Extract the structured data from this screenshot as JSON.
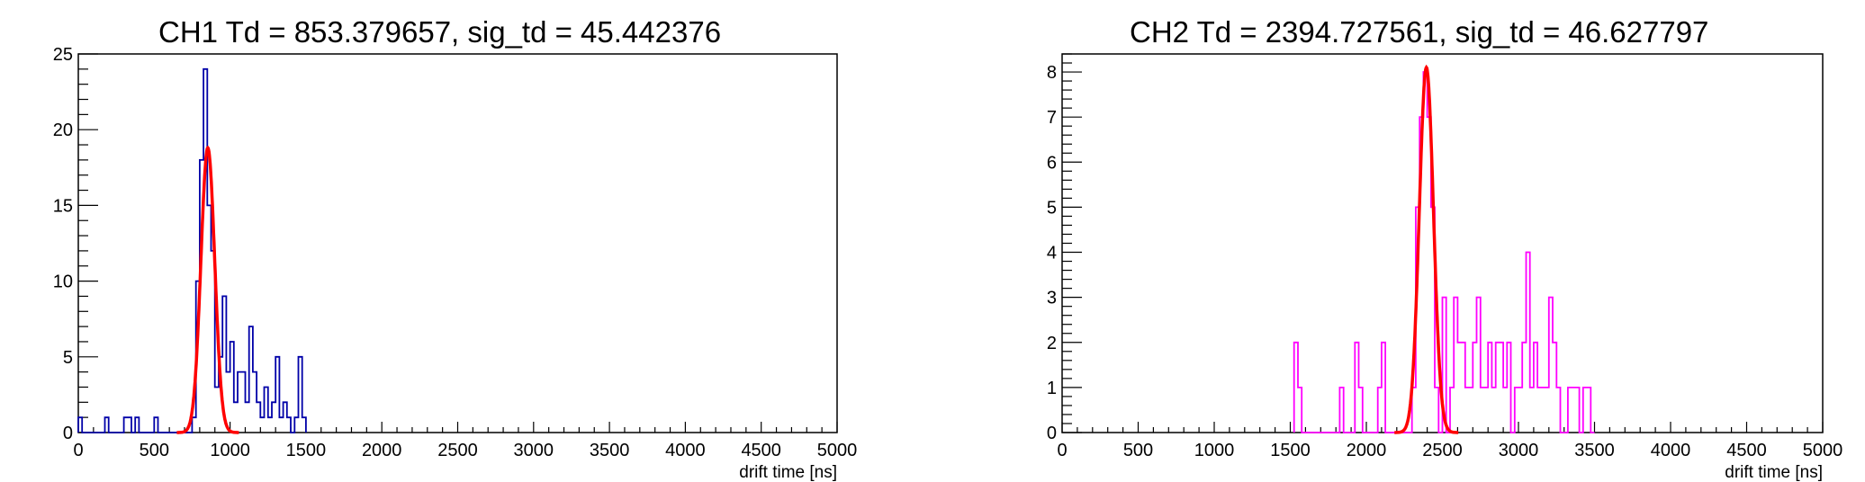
{
  "chart_data": [
    {
      "type": "histogram",
      "title": "CH1 Td = 853.379657, sig_td = 45.442376",
      "xlabel": "drift time [ns]",
      "ylabel": "",
      "xlim": [
        0,
        5000
      ],
      "ylim": [
        0,
        25
      ],
      "x_ticks": [
        0,
        500,
        1000,
        1500,
        2000,
        2500,
        3000,
        3500,
        4000,
        4500,
        5000
      ],
      "y_ticks": [
        0,
        5,
        10,
        15,
        20,
        25
      ],
      "grid": false,
      "bin_width": 25,
      "series": [
        {
          "color": "#0000a8",
          "style": "step-histogram",
          "bins": [
            [
              0,
              1
            ],
            [
              25,
              0
            ],
            [
              50,
              0
            ],
            [
              75,
              0
            ],
            [
              100,
              0
            ],
            [
              125,
              0
            ],
            [
              150,
              0
            ],
            [
              175,
              1
            ],
            [
              200,
              0
            ],
            [
              225,
              0
            ],
            [
              250,
              0
            ],
            [
              275,
              0
            ],
            [
              300,
              1
            ],
            [
              325,
              1
            ],
            [
              350,
              0
            ],
            [
              375,
              1
            ],
            [
              400,
              0
            ],
            [
              425,
              0
            ],
            [
              450,
              0
            ],
            [
              475,
              0
            ],
            [
              500,
              1
            ],
            [
              525,
              0
            ],
            [
              550,
              0
            ],
            [
              575,
              0
            ],
            [
              600,
              0
            ],
            [
              625,
              0
            ],
            [
              650,
              0
            ],
            [
              675,
              0
            ],
            [
              700,
              0
            ],
            [
              725,
              0
            ],
            [
              750,
              1
            ],
            [
              775,
              10
            ],
            [
              800,
              18
            ],
            [
              825,
              24
            ],
            [
              850,
              15
            ],
            [
              875,
              12
            ],
            [
              900,
              3
            ],
            [
              925,
              5
            ],
            [
              950,
              9
            ],
            [
              975,
              4
            ],
            [
              1000,
              6
            ],
            [
              1025,
              2
            ],
            [
              1050,
              4
            ],
            [
              1075,
              4
            ],
            [
              1100,
              2
            ],
            [
              1125,
              7
            ],
            [
              1150,
              4
            ],
            [
              1175,
              2
            ],
            [
              1200,
              1
            ],
            [
              1225,
              3
            ],
            [
              1250,
              1
            ],
            [
              1275,
              2
            ],
            [
              1300,
              5
            ],
            [
              1325,
              1
            ],
            [
              1350,
              2
            ],
            [
              1375,
              1
            ],
            [
              1400,
              0
            ],
            [
              1425,
              1
            ],
            [
              1450,
              5
            ],
            [
              1475,
              1
            ]
          ]
        },
        {
          "color": "#ff0000",
          "style": "gaussian-fit",
          "amplitude": 18.8,
          "mean": 853.379657,
          "sigma": 45.442376
        }
      ]
    },
    {
      "type": "histogram",
      "title": "CH2 Td = 2394.727561, sig_td = 46.627797",
      "xlabel": "drift time [ns]",
      "ylabel": "",
      "xlim": [
        0,
        5000
      ],
      "ylim": [
        0,
        8.4
      ],
      "x_ticks": [
        0,
        500,
        1000,
        1500,
        2000,
        2500,
        3000,
        3500,
        4000,
        4500,
        5000
      ],
      "y_ticks": [
        0,
        1,
        2,
        3,
        4,
        5,
        6,
        7,
        8
      ],
      "grid": false,
      "bin_width": 25,
      "series": [
        {
          "color": "#ff00ff",
          "style": "step-histogram",
          "bins": [
            [
              1525,
              2
            ],
            [
              1550,
              1
            ],
            [
              1575,
              0
            ],
            [
              1600,
              0
            ],
            [
              1625,
              0
            ],
            [
              1650,
              0
            ],
            [
              1675,
              0
            ],
            [
              1700,
              0
            ],
            [
              1725,
              0
            ],
            [
              1750,
              0
            ],
            [
              1775,
              0
            ],
            [
              1800,
              0
            ],
            [
              1825,
              1
            ],
            [
              1850,
              0
            ],
            [
              1875,
              0
            ],
            [
              1900,
              0
            ],
            [
              1925,
              2
            ],
            [
              1950,
              1
            ],
            [
              1975,
              0
            ],
            [
              2000,
              0
            ],
            [
              2025,
              0
            ],
            [
              2050,
              0
            ],
            [
              2075,
              1
            ],
            [
              2100,
              2
            ],
            [
              2125,
              0
            ],
            [
              2150,
              0
            ],
            [
              2175,
              0
            ],
            [
              2200,
              0
            ],
            [
              2225,
              0
            ],
            [
              2250,
              0
            ],
            [
              2275,
              0
            ],
            [
              2300,
              1
            ],
            [
              2325,
              5
            ],
            [
              2350,
              7
            ],
            [
              2375,
              8
            ],
            [
              2400,
              7
            ],
            [
              2425,
              5
            ],
            [
              2450,
              1
            ],
            [
              2475,
              0
            ],
            [
              2500,
              3
            ],
            [
              2525,
              0
            ],
            [
              2550,
              1
            ],
            [
              2575,
              3
            ],
            [
              2600,
              2
            ],
            [
              2625,
              2
            ],
            [
              2650,
              1
            ],
            [
              2675,
              1
            ],
            [
              2700,
              2
            ],
            [
              2725,
              3
            ],
            [
              2750,
              1
            ],
            [
              2775,
              1
            ],
            [
              2800,
              2
            ],
            [
              2825,
              1
            ],
            [
              2850,
              2
            ],
            [
              2875,
              2
            ],
            [
              2900,
              1
            ],
            [
              2925,
              2
            ],
            [
              2950,
              0
            ],
            [
              2975,
              1
            ],
            [
              3000,
              1
            ],
            [
              3025,
              2
            ],
            [
              3050,
              4
            ],
            [
              3075,
              1
            ],
            [
              3100,
              2
            ],
            [
              3125,
              1
            ],
            [
              3150,
              1
            ],
            [
              3175,
              1
            ],
            [
              3200,
              3
            ],
            [
              3225,
              2
            ],
            [
              3250,
              1
            ],
            [
              3275,
              0
            ],
            [
              3300,
              0
            ],
            [
              3325,
              1
            ],
            [
              3350,
              1
            ],
            [
              3375,
              1
            ],
            [
              3400,
              0
            ],
            [
              3425,
              1
            ],
            [
              3450,
              1
            ],
            [
              3475,
              0
            ]
          ]
        },
        {
          "color": "#ff0000",
          "style": "gaussian-fit",
          "amplitude": 8.1,
          "mean": 2394.727561,
          "sigma": 46.627797
        }
      ]
    }
  ]
}
